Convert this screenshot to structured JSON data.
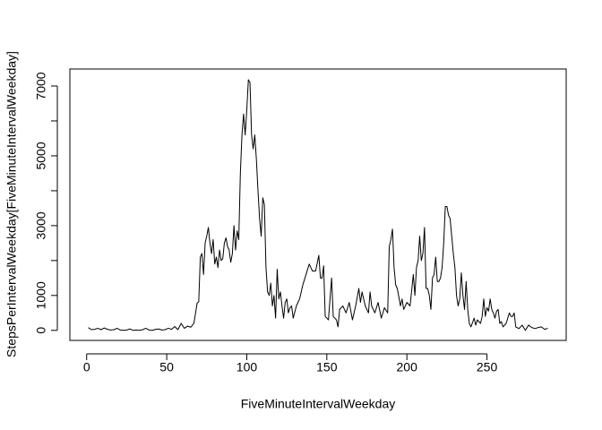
{
  "chart_data": {
    "type": "line",
    "x_label": "FiveMinuteIntervalWeekday",
    "y_label": "StepsPerIntervalWeekday[FiveMinuteIntervalWeekday]",
    "x": [
      1,
      3,
      5,
      7,
      9,
      11,
      13,
      15,
      17,
      19,
      21,
      23,
      25,
      27,
      29,
      31,
      33,
      35,
      37,
      39,
      41,
      43,
      45,
      47,
      49,
      51,
      53,
      55,
      57,
      59,
      61,
      63,
      65,
      67,
      69,
      70,
      71,
      72,
      73,
      74,
      75,
      76,
      77,
      78,
      79,
      80,
      81,
      82,
      83,
      84,
      85,
      86,
      87,
      88,
      89,
      90,
      91,
      92,
      93,
      94,
      95,
      96,
      97,
      98,
      99,
      100,
      101,
      102,
      103,
      104,
      105,
      106,
      107,
      108,
      109,
      110,
      111,
      112,
      113,
      114,
      115,
      116,
      117,
      118,
      119,
      120,
      121,
      122,
      123,
      124,
      125,
      126,
      127,
      128,
      129,
      131,
      133,
      135,
      137,
      139,
      141,
      143,
      145,
      146,
      147,
      148,
      149,
      151,
      153,
      154,
      156,
      157,
      158,
      160,
      162,
      164,
      166,
      168,
      170,
      171,
      172,
      174,
      176,
      177,
      178,
      180,
      182,
      184,
      186,
      188,
      189,
      190,
      191,
      192,
      193,
      194,
      196,
      197,
      198,
      200,
      202,
      204,
      205,
      206,
      207,
      208,
      209,
      210,
      211,
      212,
      213,
      214,
      215,
      216,
      217,
      218,
      219,
      220,
      221,
      222,
      223,
      224,
      225,
      226,
      227,
      228,
      229,
      230,
      231,
      232,
      233,
      234,
      235,
      236,
      237,
      238,
      239,
      240,
      242,
      243,
      244,
      246,
      247,
      248,
      249,
      250,
      251,
      252,
      253,
      254,
      255,
      256,
      257,
      258,
      259,
      260,
      262,
      264,
      265,
      266,
      267,
      268,
      270,
      272,
      274,
      276,
      278,
      280,
      282,
      284,
      286,
      288
    ],
    "series": [
      {
        "color": "#000000",
        "values": [
          80,
          20,
          30,
          60,
          20,
          70,
          30,
          10,
          20,
          60,
          10,
          0,
          10,
          40,
          0,
          10,
          0,
          20,
          60,
          10,
          0,
          30,
          40,
          10,
          20,
          60,
          30,
          110,
          20,
          200,
          60,
          120,
          90,
          200,
          780,
          820,
          2100,
          2200,
          1600,
          2500,
          2700,
          2950,
          2500,
          2200,
          2600,
          1900,
          2100,
          1800,
          2300,
          2000,
          2050,
          2500,
          2650,
          2400,
          2300,
          1950,
          2200,
          3000,
          2300,
          2850,
          2600,
          4500,
          5600,
          6200,
          5600,
          6300,
          7180,
          7100,
          5600,
          5200,
          5600,
          4900,
          4000,
          3200,
          2700,
          3800,
          3600,
          1800,
          1100,
          1000,
          1350,
          700,
          1000,
          350,
          1750,
          900,
          1100,
          700,
          350,
          800,
          900,
          500,
          650,
          700,
          350,
          700,
          900,
          1300,
          1600,
          1900,
          1700,
          1700,
          2150,
          1500,
          1500,
          1850,
          400,
          300,
          1500,
          400,
          300,
          100,
          600,
          700,
          500,
          800,
          300,
          700,
          1200,
          800,
          1100,
          700,
          500,
          1100,
          700,
          500,
          800,
          350,
          650,
          500,
          2400,
          2600,
          2900,
          1800,
          1300,
          1200,
          700,
          900,
          600,
          800,
          700,
          1600,
          1000,
          1800,
          2000,
          2700,
          2000,
          2200,
          2950,
          1200,
          1200,
          1000,
          600,
          1500,
          1600,
          2100,
          1400,
          1400,
          1500,
          1800,
          2500,
          3550,
          3550,
          3300,
          3200,
          2700,
          2200,
          1800,
          1000,
          700,
          900,
          1650,
          1000,
          600,
          1400,
          600,
          200,
          100,
          350,
          150,
          300,
          200,
          400,
          900,
          400,
          650,
          550,
          900,
          600,
          500,
          350,
          550,
          600,
          200,
          250,
          100,
          200,
          500,
          400,
          400,
          500,
          100,
          50,
          150,
          0,
          150,
          80,
          50,
          80,
          100,
          30,
          60
        ]
      }
    ],
    "xlim": [
      -10.48,
      299.48
    ],
    "xticks": [
      0,
      50,
      100,
      150,
      200,
      250
    ],
    "ylim": [
      -288,
      7488
    ],
    "yticks": [
      0,
      1000,
      {
        "value": 2000,
        "label": null
      },
      3000,
      {
        "value": 4000,
        "label": null
      },
      5000,
      {
        "value": 6000,
        "label": null
      },
      7000
    ],
    "grid": false
  }
}
